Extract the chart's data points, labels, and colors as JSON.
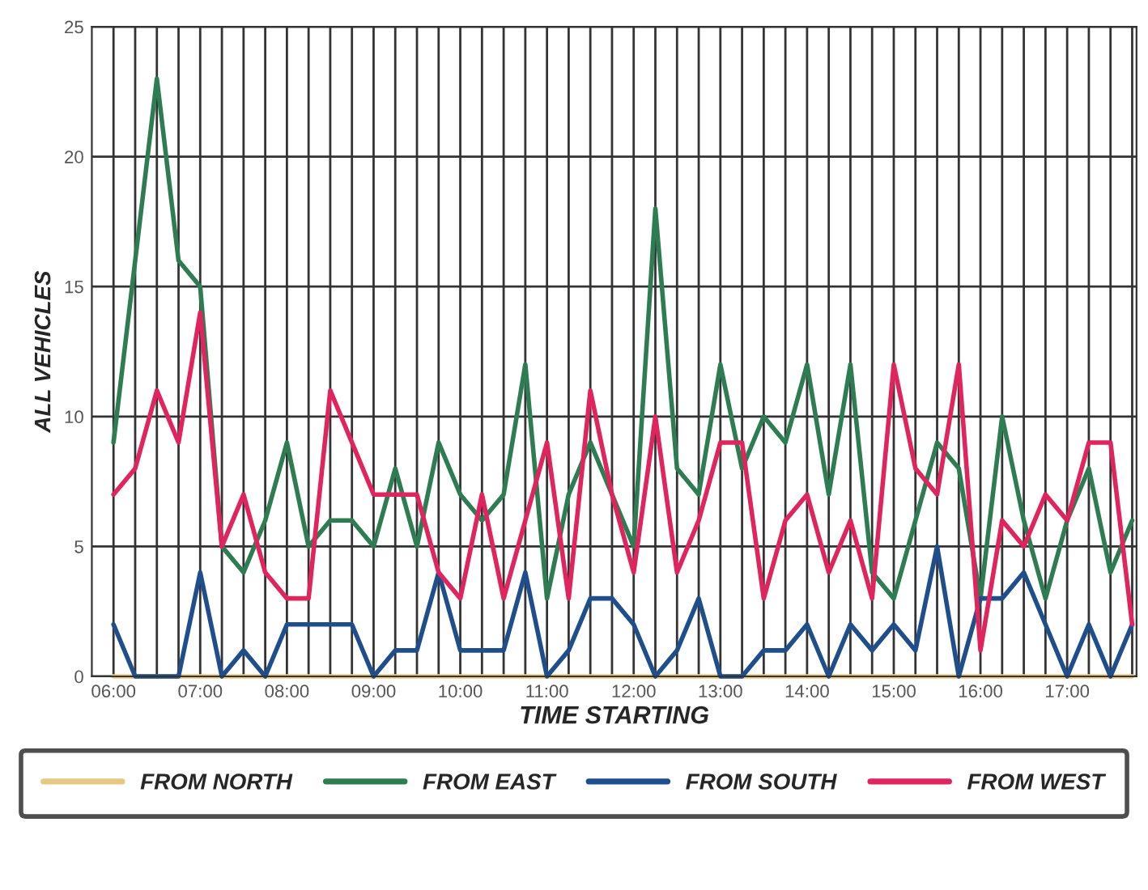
{
  "chart_data": {
    "type": "line",
    "xlabel": "TIME STARTING",
    "ylabel": "ALL VEHICLES",
    "x": [
      6.0,
      6.25,
      6.5,
      6.75,
      7.0,
      7.25,
      7.5,
      7.75,
      8.0,
      8.25,
      8.5,
      8.75,
      9.0,
      9.25,
      9.5,
      9.75,
      10.0,
      10.25,
      10.5,
      10.75,
      11.0,
      11.25,
      11.5,
      11.75,
      12.0,
      12.25,
      12.5,
      12.75,
      13.0,
      13.25,
      13.5,
      13.75,
      14.0,
      14.25,
      14.5,
      14.75,
      15.0,
      15.25,
      15.5,
      15.75,
      16.0,
      16.25,
      16.5,
      16.75,
      17.0,
      17.25,
      17.5,
      17.75
    ],
    "series": [
      {
        "name": "FROM NORTH",
        "color": "#e6c882",
        "values": [
          0,
          0,
          0,
          0,
          0,
          0,
          0,
          0,
          0,
          0,
          0,
          0,
          0,
          0,
          0,
          0,
          0,
          0,
          0,
          0,
          0,
          0,
          0,
          0,
          0,
          0,
          0,
          0,
          0,
          0,
          0,
          0,
          0,
          0,
          0,
          0,
          0,
          0,
          0,
          0,
          0,
          0,
          0,
          0,
          0,
          0,
          0,
          0
        ]
      },
      {
        "name": "FROM EAST",
        "color": "#2e7d52",
        "values": [
          9,
          16,
          23,
          16,
          15,
          5,
          4,
          6,
          9,
          5,
          6,
          6,
          5,
          8,
          5,
          9,
          7,
          6,
          7,
          12,
          3,
          7,
          9,
          7,
          5,
          18,
          8,
          7,
          12,
          8,
          10,
          9,
          12,
          7,
          12,
          4,
          3,
          6,
          9,
          8,
          3,
          10,
          6,
          3,
          6,
          8,
          4,
          6
        ]
      },
      {
        "name": "FROM SOUTH",
        "color": "#1f4e8c",
        "values": [
          2,
          0,
          0,
          0,
          4,
          0,
          1,
          0,
          2,
          2,
          2,
          2,
          0,
          1,
          1,
          4,
          1,
          1,
          1,
          4,
          0,
          1,
          3,
          3,
          2,
          0,
          1,
          3,
          0,
          0,
          1,
          1,
          2,
          0,
          2,
          1,
          2,
          1,
          5,
          0,
          3,
          3,
          4,
          2,
          0,
          2,
          0,
          2
        ]
      },
      {
        "name": "FROM WEST",
        "color": "#e0245e",
        "values": [
          7,
          8,
          11,
          9,
          14,
          5,
          7,
          4,
          3,
          3,
          11,
          9,
          7,
          7,
          7,
          4,
          3,
          7,
          3,
          6,
          9,
          3,
          11,
          7,
          4,
          10,
          4,
          6,
          9,
          9,
          3,
          6,
          7,
          4,
          6,
          3,
          12,
          8,
          7,
          12,
          1,
          6,
          5,
          7,
          6,
          9,
          9,
          2
        ]
      }
    ],
    "xlim": [
      5.75,
      17.8
    ],
    "xticks": [
      {
        "value": 6,
        "label": "06:00"
      },
      {
        "value": 7,
        "label": "07:00"
      },
      {
        "value": 8,
        "label": "08:00"
      },
      {
        "value": 9,
        "label": "09:00"
      },
      {
        "value": 10,
        "label": "10:00"
      },
      {
        "value": 11,
        "label": "11:00"
      },
      {
        "value": 12,
        "label": "12:00"
      },
      {
        "value": 13,
        "label": "13:00"
      },
      {
        "value": 14,
        "label": "14:00"
      },
      {
        "value": 15,
        "label": "15:00"
      },
      {
        "value": 16,
        "label": "16:00"
      },
      {
        "value": 17,
        "label": "17:00"
      }
    ],
    "ylim": [
      0,
      25
    ],
    "yticks": [
      0,
      5,
      10,
      15,
      20,
      25
    ],
    "grid": true,
    "legend": "bottom",
    "marker": "none",
    "line_style": "solid"
  }
}
